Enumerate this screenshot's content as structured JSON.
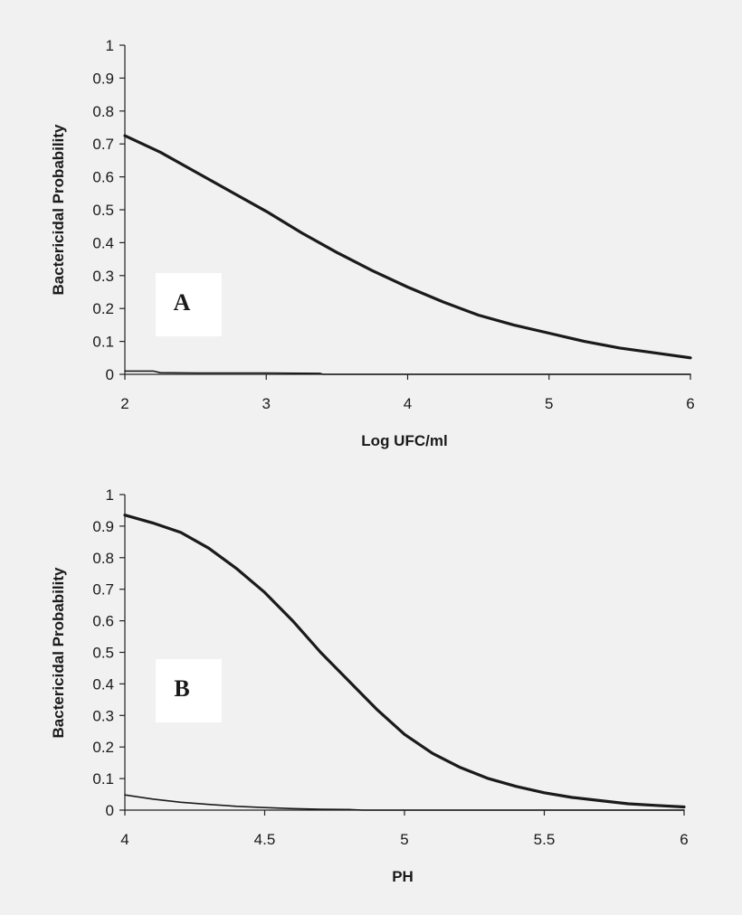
{
  "chart_data": [
    {
      "type": "line",
      "panel_label": "A",
      "xlabel": "Log UFC/ml",
      "ylabel": "Bactericidal Probability",
      "xlim": [
        2,
        6
      ],
      "ylim": [
        0,
        1
      ],
      "xticks": [
        "2",
        "3",
        "4",
        "5",
        "6"
      ],
      "yticks": [
        "0",
        "0.1",
        "0.2",
        "0.3",
        "0.4",
        "0.5",
        "0.6",
        "0.7",
        "0.8",
        "0.9",
        "1"
      ],
      "grid": false,
      "legend": "none",
      "series": [
        {
          "style": "thick",
          "x": [
            2.0,
            2.25,
            2.5,
            2.75,
            3.0,
            3.25,
            3.5,
            3.75,
            4.0,
            4.25,
            4.5,
            4.75,
            5.0,
            5.25,
            5.5,
            5.75,
            6.0
          ],
          "y": [
            0.725,
            0.675,
            0.615,
            0.555,
            0.495,
            0.43,
            0.37,
            0.315,
            0.265,
            0.22,
            0.18,
            0.15,
            0.125,
            0.1,
            0.08,
            0.065,
            0.05
          ]
        },
        {
          "style": "thin",
          "x": [
            2.0,
            2.2,
            2.25,
            2.5,
            3.0,
            3.38,
            3.4,
            4.0,
            5.0,
            6.0
          ],
          "y": [
            0.01,
            0.01,
            0.005,
            0.004,
            0.004,
            0.003,
            0.0,
            0.0,
            0.0,
            0.0
          ]
        }
      ]
    },
    {
      "type": "line",
      "panel_label": "B",
      "xlabel": "PH",
      "ylabel": "Bactericidal Probability",
      "xlim": [
        4,
        6
      ],
      "ylim": [
        0,
        1
      ],
      "xticks": [
        "4",
        "4.5",
        "5",
        "5.5",
        "6"
      ],
      "yticks": [
        "0",
        "0.1",
        "0.2",
        "0.3",
        "0.4",
        "0.5",
        "0.6",
        "0.7",
        "0.8",
        "0.9",
        "1"
      ],
      "grid": false,
      "legend": "none",
      "series": [
        {
          "style": "thick",
          "x": [
            4.0,
            4.1,
            4.2,
            4.3,
            4.4,
            4.5,
            4.6,
            4.7,
            4.8,
            4.9,
            5.0,
            5.1,
            5.2,
            5.3,
            5.4,
            5.5,
            5.6,
            5.7,
            5.8,
            5.9,
            6.0
          ],
          "y": [
            0.935,
            0.91,
            0.88,
            0.83,
            0.765,
            0.69,
            0.6,
            0.5,
            0.41,
            0.32,
            0.24,
            0.18,
            0.135,
            0.1,
            0.075,
            0.055,
            0.04,
            0.03,
            0.02,
            0.015,
            0.01
          ]
        },
        {
          "style": "thin",
          "x": [
            4.0,
            4.1,
            4.2,
            4.3,
            4.4,
            4.5,
            4.6,
            4.7,
            4.8,
            4.85,
            5.0,
            5.5,
            6.0
          ],
          "y": [
            0.048,
            0.035,
            0.025,
            0.018,
            0.012,
            0.008,
            0.005,
            0.003,
            0.002,
            0.0,
            0.0,
            0.0,
            0.0
          ]
        }
      ]
    }
  ]
}
